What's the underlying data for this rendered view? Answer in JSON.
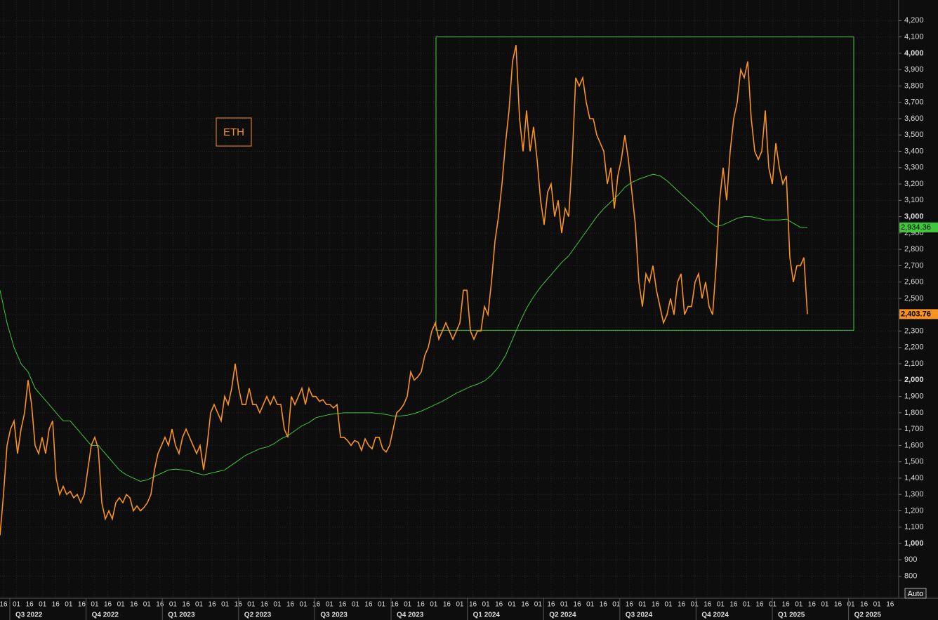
{
  "chart_data": {
    "type": "line",
    "annotation": "ETH",
    "auto_button": "Auto",
    "ylim": [
      665,
      4326
    ],
    "yticks": [
      800,
      900,
      {
        "value": 1000,
        "label": "1,000"
      },
      {
        "value": 1100,
        "label": "1,100"
      },
      {
        "value": 1200,
        "label": "1,200"
      },
      {
        "value": 1300,
        "label": "1,300"
      },
      {
        "value": 1400,
        "label": "1,400"
      },
      {
        "value": 1500,
        "label": "1,500"
      },
      {
        "value": 1600,
        "label": "1,600"
      },
      {
        "value": 1700,
        "label": "1,700"
      },
      {
        "value": 1800,
        "label": "1,800"
      },
      {
        "value": 1900,
        "label": "1,900"
      },
      {
        "value": 2000,
        "label": "2,000"
      },
      {
        "value": 2100,
        "label": "2,100"
      },
      {
        "value": 2200,
        "label": "2,200"
      },
      {
        "value": 2300,
        "label": "2,300"
      },
      {
        "value": 2400,
        "label": "2,400"
      },
      {
        "value": 2500,
        "label": "2,500"
      },
      {
        "value": 2600,
        "label": "2,600"
      },
      {
        "value": 2700,
        "label": "2,700"
      },
      {
        "value": 2800,
        "label": "2,800"
      },
      {
        "value": 2900,
        "label": "2,900"
      },
      {
        "value": 3000,
        "label": "3,000"
      },
      {
        "value": 3100,
        "label": "3,100"
      },
      {
        "value": 3200,
        "label": "3,200"
      },
      {
        "value": 3300,
        "label": "3,300"
      },
      {
        "value": 3400,
        "label": "3,400"
      },
      {
        "value": 3500,
        "label": "3,500"
      },
      {
        "value": 3600,
        "label": "3,600"
      },
      {
        "value": 3700,
        "label": "3,700"
      },
      {
        "value": 3800,
        "label": "3,800"
      },
      {
        "value": 3900,
        "label": "3,900"
      },
      {
        "value": 4000,
        "label": "4,000"
      },
      {
        "value": 4100,
        "label": "4,100"
      },
      {
        "value": 4200,
        "label": "4,200"
      }
    ],
    "x_tick_labels": [
      "16",
      "01",
      "16",
      "01",
      "16",
      "01",
      "16",
      "01",
      "16",
      "01",
      "16",
      "01",
      "16",
      "01",
      "16",
      "01",
      "16",
      "01",
      "16",
      "01",
      "16",
      "01",
      "16",
      "01",
      "16",
      "01",
      "16",
      "01",
      "16",
      "01",
      "16",
      "01",
      "16",
      "01",
      "16",
      "01",
      "16",
      "01",
      "16",
      "01",
      "16",
      "01",
      "16",
      "01",
      "16",
      "01",
      "16",
      "01",
      "16",
      "01",
      "16",
      "01",
      "16",
      "01",
      "16",
      "01",
      "16",
      "01",
      "16",
      "01",
      "16",
      "01",
      "16",
      "01",
      "16",
      "01",
      "16",
      "01",
      "16"
    ],
    "quarters": [
      "Q3 2022",
      "Q4 2022",
      "Q1 2023",
      "Q2 2023",
      "Q3 2023",
      "Q4 2023",
      "Q1 2024",
      "Q2 2024",
      "Q3 2024",
      "Q4 2024",
      "Q1 2025",
      "Q2 2025"
    ],
    "highlight_box": {
      "color": "#4ccd3f",
      "ylim": [
        2305,
        4100
      ]
    },
    "series": [
      {
        "color": "#f7931e",
        "end_label": "2,403.76",
        "values": [
          1050,
          1300,
          1600,
          1700,
          1750,
          1550,
          1700,
          1800,
          2000,
          1850,
          1600,
          1550,
          1650,
          1550,
          1700,
          1750,
          1400,
          1300,
          1350,
          1300,
          1320,
          1280,
          1300,
          1250,
          1300,
          1450,
          1600,
          1650,
          1580,
          1250,
          1150,
          1200,
          1150,
          1250,
          1280,
          1250,
          1300,
          1280,
          1200,
          1230,
          1200,
          1220,
          1250,
          1300,
          1450,
          1550,
          1600,
          1650,
          1600,
          1700,
          1600,
          1550,
          1650,
          1700,
          1650,
          1600,
          1550,
          1600,
          1450,
          1600,
          1800,
          1850,
          1800,
          1750,
          1900,
          1850,
          1950,
          2100,
          1950,
          1850,
          1850,
          1950,
          1850,
          1850,
          1800,
          1850,
          1900,
          1850,
          1900,
          1850,
          1850,
          1700,
          1650,
          1900,
          1850,
          1900,
          1950,
          1850,
          1950,
          1900,
          1900,
          1870,
          1880,
          1850,
          1850,
          1830,
          1850,
          1650,
          1650,
          1630,
          1600,
          1630,
          1620,
          1570,
          1640,
          1600,
          1580,
          1650,
          1650,
          1580,
          1560,
          1600,
          1700,
          1800,
          1820,
          1850,
          1900,
          2050,
          2000,
          2020,
          2050,
          2150,
          2200,
          2300,
          2350,
          2250,
          2300,
          2350,
          2300,
          2250,
          2300,
          2350,
          2550,
          2550,
          2300,
          2250,
          2300,
          2300,
          2450,
          2400,
          2600,
          2850,
          3000,
          3200,
          3450,
          3650,
          3950,
          4050,
          3600,
          3400,
          3650,
          3400,
          3550,
          3350,
          3100,
          2950,
          3150,
          3200,
          3000,
          3100,
          2900,
          3050,
          3000,
          3350,
          3850,
          3800,
          3850,
          3700,
          3600,
          3600,
          3500,
          3450,
          3400,
          3200,
          3300,
          3050,
          3250,
          3350,
          3500,
          3350,
          3150,
          2950,
          2600,
          2450,
          2650,
          2600,
          2700,
          2550,
          2450,
          2350,
          2400,
          2500,
          2400,
          2600,
          2650,
          2400,
          2450,
          2450,
          2600,
          2650,
          2500,
          2600,
          2450,
          2400,
          2700,
          3100,
          3300,
          3100,
          3400,
          3600,
          3700,
          3900,
          3850,
          3950,
          3600,
          3400,
          3350,
          3400,
          3650,
          3300,
          3200,
          3450,
          3300,
          3200,
          3250,
          2750,
          2600,
          2700,
          2700,
          2750,
          2403.76
        ]
      },
      {
        "color": "#3fc83a",
        "end_label": "2,934.36",
        "values": [
          2550,
          2350,
          2200,
          2100,
          2050,
          1950,
          1900,
          1850,
          1800,
          1750,
          1750,
          1700,
          1650,
          1600,
          1600,
          1550,
          1500,
          1450,
          1420,
          1400,
          1380,
          1390,
          1410,
          1430,
          1450,
          1455,
          1450,
          1445,
          1430,
          1420,
          1430,
          1440,
          1450,
          1480,
          1510,
          1540,
          1560,
          1580,
          1590,
          1610,
          1640,
          1660,
          1690,
          1720,
          1740,
          1770,
          1780,
          1790,
          1795,
          1800,
          1800,
          1800,
          1800,
          1800,
          1795,
          1790,
          1780,
          1780,
          1785,
          1795,
          1810,
          1830,
          1850,
          1870,
          1895,
          1920,
          1940,
          1960,
          1975,
          1995,
          2030,
          2080,
          2150,
          2250,
          2350,
          2440,
          2510,
          2570,
          2620,
          2670,
          2720,
          2760,
          2820,
          2880,
          2940,
          3000,
          3050,
          3090,
          3130,
          3180,
          3210,
          3230,
          3245,
          3260,
          3250,
          3220,
          3180,
          3140,
          3100,
          3060,
          3020,
          2970,
          2940,
          2950,
          2970,
          2990,
          3000,
          3000,
          2990,
          2980,
          2980,
          2980,
          2985,
          2960,
          2935,
          2934.36
        ]
      }
    ]
  }
}
